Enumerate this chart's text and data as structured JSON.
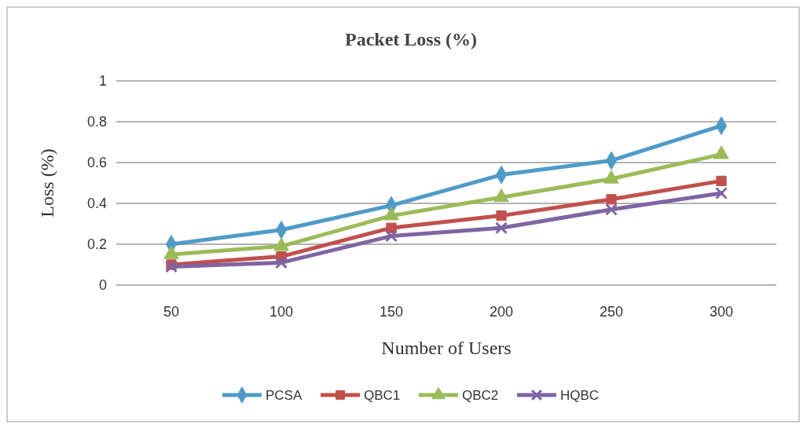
{
  "chart_data": {
    "type": "line",
    "title": "Packet Loss (%)",
    "xlabel": "Number of Users",
    "ylabel": "Loss (%)",
    "categories": [
      "50",
      "100",
      "150",
      "200",
      "250",
      "300"
    ],
    "series": [
      {
        "name": "PCSA",
        "color": "#4f9bc8",
        "marker": "diamond",
        "values": [
          0.2,
          0.27,
          0.39,
          0.54,
          0.61,
          0.78
        ]
      },
      {
        "name": "QBC1",
        "color": "#c0504d",
        "marker": "square",
        "values": [
          0.1,
          0.14,
          0.28,
          0.34,
          0.42,
          0.51
        ]
      },
      {
        "name": "QBC2",
        "color": "#9bbb59",
        "marker": "triangle",
        "values": [
          0.15,
          0.19,
          0.34,
          0.43,
          0.52,
          0.64
        ]
      },
      {
        "name": "HQBC",
        "color": "#8064a2",
        "marker": "cross",
        "values": [
          0.09,
          0.11,
          0.24,
          0.28,
          0.37,
          0.45
        ]
      }
    ],
    "ylim": [
      0,
      1
    ],
    "yticks": [
      0,
      0.2,
      0.4,
      0.6,
      0.8,
      1
    ],
    "grid": "y",
    "legend": "bottom"
  }
}
